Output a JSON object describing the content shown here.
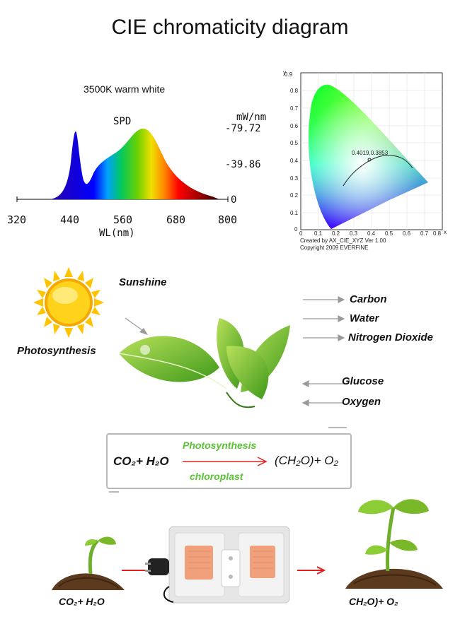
{
  "title": "CIE chromaticity diagram",
  "spd": {
    "subtitle": "3500K warm white",
    "label": "SPD",
    "unit": "mW/nm",
    "y_max_label": "-79.72",
    "y_mid_label": "-39.86",
    "y_zero_label": "0",
    "x_ticks": [
      "320",
      "440",
      "560",
      "680",
      "800"
    ],
    "x_label": "WL(nm)"
  },
  "cie": {
    "y_axis": "y",
    "x_axis": "x",
    "point_label": "0.4019,0.3853",
    "created": "Created by AX_CIE_XYZ Ver 1.00",
    "copyright": "Copyright 2009 EVERFINE",
    "y_ticks": [
      "0",
      "0.1",
      "0.2",
      "0.3",
      "0.4",
      "0.5",
      "0.6",
      "0.7",
      "0.8",
      "0.9"
    ],
    "x_ticks": [
      "0",
      "0.1",
      "0.2",
      "0.3",
      "0.4",
      "0.5",
      "0.6",
      "0.7",
      "0.8"
    ]
  },
  "photo": {
    "sunshine": "Sunshine",
    "photosynthesis": "Photosynthesis",
    "outputs_in": [
      "Carbon",
      "Water",
      "Nitrogen Dioxide"
    ],
    "outputs_out": [
      "Glucose",
      "Oxygen"
    ]
  },
  "equation": {
    "left": "CO₂+ H₂O",
    "right": "(CH₂O)+ O₂",
    "top": "Photosynthesis",
    "bottom": "chloroplast"
  },
  "bottom": {
    "left_label": "CO₂+ H₂O",
    "right_label": "CH₂O)+ O₂"
  },
  "colors": {
    "green_text": "#5bc236",
    "arrow_red": "#e02020",
    "grey_arrow": "#9a9a9a"
  }
}
